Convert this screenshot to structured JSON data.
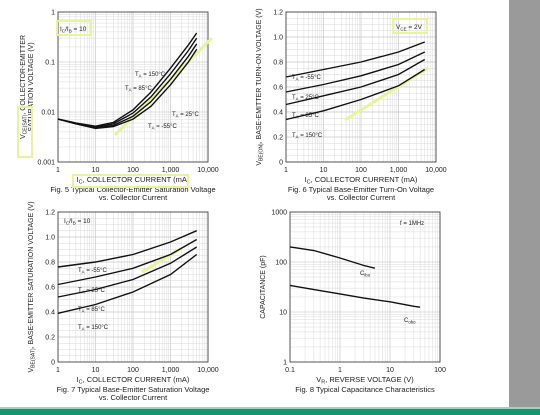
{
  "page": {
    "colors": {
      "background": "#ffffff",
      "right_bar": "#9a9a9a",
      "bottom_bar": "#15966e",
      "highlight": "#e9f49a",
      "curve": "#111111"
    }
  },
  "chart_data": [
    {
      "id": "fig5",
      "type": "line",
      "caption_line1": "Fig. 5 Typical Collector-Emitter Saturation Voltage",
      "caption_line2": "vs. Collector Current",
      "xlabel_prefix": "I",
      "xlabel_sub": "C",
      "xlabel_rest": ", COLLECTOR CURRENT (mA)",
      "ylabel_prefix": "V",
      "ylabel_sub": "CE(SAT)",
      "ylabel_rest": ", COLLECTOR-EMITTER",
      "ylabel_line2": "SATURATION VOLTAGE (V)",
      "xscale": "log",
      "yscale": "log",
      "xlim": [
        1,
        10000
      ],
      "ylim": [
        0.001,
        1
      ],
      "xticks": [
        1,
        10,
        100,
        1000,
        10000
      ],
      "xtick_labels": [
        "1",
        "10",
        "100",
        "1,000",
        "10,000"
      ],
      "yticks": [
        1,
        0.1,
        0.01,
        0.001
      ],
      "ytick_labels": [
        "1",
        "0.1",
        "0.01",
        "0.001"
      ],
      "legend_box": "I C/I B = 10",
      "legend_main": "I",
      "legend_sub1": "C",
      "legend_slash": "/I",
      "legend_sub2": "B",
      "legend_tail": " = 10",
      "grid": true,
      "series": [
        {
          "name": "TA = 150°C",
          "label_main": "T",
          "label_sub": "A",
          "label_rest": " = 150°C",
          "x": [
            1,
            3,
            10,
            30,
            100,
            300,
            1000,
            3000,
            5000
          ],
          "y": [
            0.0072,
            0.006,
            0.0052,
            0.0062,
            0.011,
            0.025,
            0.075,
            0.22,
            0.38
          ]
        },
        {
          "name": "TA = 85°C",
          "label_main": "T",
          "label_sub": "A",
          "label_rest": " = 85°C",
          "x": [
            1,
            3,
            10,
            30,
            100,
            300,
            1000,
            3000,
            5000
          ],
          "y": [
            0.0072,
            0.006,
            0.005,
            0.0058,
            0.0095,
            0.02,
            0.058,
            0.17,
            0.3
          ]
        },
        {
          "name": "TA = 25°C",
          "label_main": "T",
          "label_sub": "A",
          "label_rest": " = 25°C",
          "x": [
            1,
            3,
            10,
            30,
            100,
            300,
            1000,
            3000,
            5000
          ],
          "y": [
            0.0072,
            0.0058,
            0.0048,
            0.0054,
            0.0082,
            0.016,
            0.045,
            0.13,
            0.23
          ]
        },
        {
          "name": "TA = -55°C",
          "label_main": "T",
          "label_sub": "A",
          "label_rest": " = -55°C",
          "x": [
            1,
            3,
            10,
            30,
            100,
            300,
            1000,
            3000,
            5000
          ],
          "y": [
            0.0072,
            0.0058,
            0.0047,
            0.0051,
            0.0072,
            0.013,
            0.035,
            0.1,
            0.18
          ]
        }
      ]
    },
    {
      "id": "fig6",
      "type": "line",
      "caption_line1": "Fig. 6 Typical Base-Emitter Turn-On Voltage",
      "caption_line2": "vs. Collector Current",
      "xlabel_prefix": "I",
      "xlabel_sub": "C",
      "xlabel_rest": ", COLLECTOR CURRENT (mA)",
      "ylabel_prefix": "V",
      "ylabel_sub": "BE(ON)",
      "ylabel_rest": ", BASE-EMITTER TURN-ON VOLTAGE (V)",
      "xscale": "log",
      "yscale": "linear",
      "xlim": [
        1,
        10000
      ],
      "ylim": [
        0,
        1.2
      ],
      "xticks": [
        1,
        10,
        100,
        1000,
        10000
      ],
      "xtick_labels": [
        "1",
        "10",
        "100",
        "1,000",
        "10,000"
      ],
      "yticks": [
        0,
        0.2,
        0.4,
        0.6,
        0.8,
        1.0,
        1.2
      ],
      "ytick_labels": [
        "0",
        "0.2",
        "0.4",
        "0.6",
        "0.8",
        "1.0",
        "1.2"
      ],
      "legend_main": "V",
      "legend_sub1": "CE",
      "legend_tail": " = 2V",
      "grid": true,
      "series": [
        {
          "name": "TA = -55°C",
          "label_main": "T",
          "label_sub": "A",
          "label_rest": " = -55°C",
          "x": [
            1,
            10,
            100,
            1000,
            5000
          ],
          "y": [
            0.68,
            0.74,
            0.8,
            0.88,
            0.96
          ]
        },
        {
          "name": "TA = 25°C",
          "label_main": "T",
          "label_sub": "A",
          "label_rest": " = 25°C",
          "x": [
            1,
            10,
            100,
            1000,
            5000
          ],
          "y": [
            0.56,
            0.62,
            0.69,
            0.78,
            0.88
          ]
        },
        {
          "name": "TA = 85°C",
          "label_main": "T",
          "label_sub": "A",
          "label_rest": " = 85°C",
          "x": [
            1,
            10,
            100,
            1000,
            5000
          ],
          "y": [
            0.46,
            0.53,
            0.6,
            0.7,
            0.82
          ]
        },
        {
          "name": "TA = 150°C",
          "label_main": "T",
          "label_sub": "A",
          "label_rest": " = 150°C",
          "x": [
            1,
            10,
            100,
            1000,
            5000
          ],
          "y": [
            0.34,
            0.41,
            0.5,
            0.61,
            0.74
          ]
        }
      ]
    },
    {
      "id": "fig7",
      "type": "line",
      "caption_line1": "Fig. 7 Typical Base-Emitter Saturation Voltage",
      "caption_line2": "vs. Collector Current",
      "xlabel_prefix": "I",
      "xlabel_sub": "C",
      "xlabel_rest": ", COLLECTOR CURRENT (mA)",
      "ylabel_prefix": "V",
      "ylabel_sub": "BE(SAT)",
      "ylabel_rest": ", BASE-EMITTER SATURATION VOLTAGE (V)",
      "xscale": "log",
      "yscale": "linear",
      "xlim": [
        1,
        10000
      ],
      "ylim": [
        0,
        1.2
      ],
      "xticks": [
        1,
        10,
        100,
        1000,
        10000
      ],
      "xtick_labels": [
        "1",
        "10",
        "100",
        "1,000",
        "10,000"
      ],
      "yticks": [
        0,
        0.2,
        0.4,
        0.6,
        0.8,
        1.0,
        1.2
      ],
      "ytick_labels": [
        "0",
        "0.2",
        "0.4",
        "0.6",
        "0.8",
        "1.0",
        "1.2"
      ],
      "legend_main": "I",
      "legend_sub1": "C",
      "legend_slash": "/I",
      "legend_sub2": "B",
      "legend_tail": " = 10",
      "grid": true,
      "series": [
        {
          "name": "TA = -55°C",
          "label_main": "T",
          "label_sub": "A",
          "label_rest": " = -55°C",
          "x": [
            1,
            10,
            100,
            1000,
            5000
          ],
          "y": [
            0.76,
            0.8,
            0.86,
            0.96,
            1.05
          ]
        },
        {
          "name": "TA = 25°C",
          "label_main": "T",
          "label_sub": "A",
          "label_rest": " = 25°C",
          "x": [
            1,
            10,
            100,
            1000,
            5000
          ],
          "y": [
            0.62,
            0.68,
            0.75,
            0.86,
            0.98
          ]
        },
        {
          "name": "TA = 85°C",
          "label_main": "T",
          "label_sub": "A",
          "label_rest": " = 85°C",
          "x": [
            1,
            10,
            100,
            1000,
            5000
          ],
          "y": [
            0.52,
            0.58,
            0.66,
            0.79,
            0.92
          ]
        },
        {
          "name": "TA = 150°C",
          "label_main": "T",
          "label_sub": "A",
          "label_rest": " = 150°C",
          "x": [
            1,
            10,
            100,
            1000,
            5000
          ],
          "y": [
            0.39,
            0.46,
            0.56,
            0.7,
            0.86
          ]
        }
      ]
    },
    {
      "id": "fig8",
      "type": "line",
      "caption_line1": "Fig. 8 Typical Capacitance Characteristics",
      "xlabel_prefix": "V",
      "xlabel_sub": "R",
      "xlabel_rest": ", REVERSE VOLTAGE (V)",
      "ylabel_prefix": "",
      "ylabel_sub": "",
      "ylabel_rest": "CAPACITANCE (pF)",
      "xscale": "log",
      "yscale": "log",
      "xlim": [
        0.1,
        100
      ],
      "ylim": [
        1,
        1000
      ],
      "xticks": [
        0.1,
        1,
        10,
        100
      ],
      "xtick_labels": [
        "0.1",
        "1",
        "10",
        "100"
      ],
      "yticks": [
        1,
        10,
        100,
        1000
      ],
      "ytick_labels": [
        "1",
        "10",
        "100",
        "1000"
      ],
      "legend_plain": "f = 1MHz",
      "grid": true,
      "series": [
        {
          "name": "Cibo",
          "label_main": "C",
          "label_sub": "ibo",
          "label_rest": "",
          "x": [
            0.1,
            0.3,
            1,
            3,
            5
          ],
          "y": [
            200,
            170,
            120,
            85,
            75
          ]
        },
        {
          "name": "Cobo",
          "label_main": "C",
          "label_sub": "obo",
          "label_rest": "",
          "x": [
            0.1,
            0.3,
            1,
            3,
            10,
            30,
            40
          ],
          "y": [
            34,
            28,
            23,
            19,
            16,
            13,
            12.5
          ]
        }
      ]
    }
  ]
}
